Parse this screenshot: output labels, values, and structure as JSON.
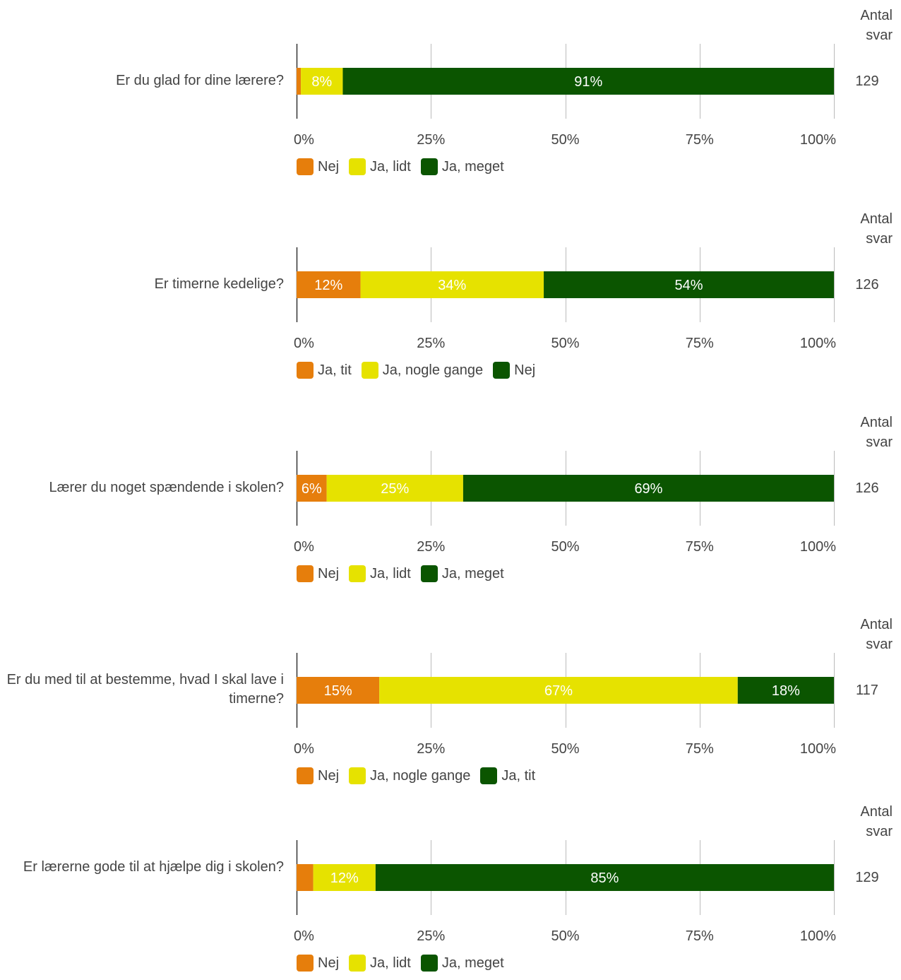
{
  "colors": {
    "orange": "#e67e0c",
    "yellow": "#e6e200",
    "green": "#0b5500",
    "grid": "#bbbbbb",
    "text": "#444444"
  },
  "chart_data": [
    {
      "type": "bar",
      "orientation": "horizontal-stacked-percent",
      "question": "Er du glad for dine lærere?",
      "count_label": "Antal\nsvar",
      "count": "129",
      "xlim": [
        0,
        100
      ],
      "xticks": [
        "0%",
        "25%",
        "50%",
        "75%",
        "100%"
      ],
      "grid": true,
      "legend_placement": "bottom-left",
      "series": [
        {
          "name": "Nej",
          "value": 0.8,
          "label": "",
          "color": "#e67e0c"
        },
        {
          "name": "Ja, lidt",
          "value": 7.8,
          "label": "8%",
          "color": "#e6e200"
        },
        {
          "name": "Ja, meget",
          "value": 91.4,
          "label": "91%",
          "color": "#0b5500"
        }
      ]
    },
    {
      "type": "bar",
      "orientation": "horizontal-stacked-percent",
      "question": "Er timerne kedelige?",
      "count_label": "Antal\nsvar",
      "count": "126",
      "xlim": [
        0,
        100
      ],
      "xticks": [
        "0%",
        "25%",
        "50%",
        "75%",
        "100%"
      ],
      "grid": true,
      "legend_placement": "bottom-left",
      "series": [
        {
          "name": "Ja, tit",
          "value": 11.9,
          "label": "12%",
          "color": "#e67e0c"
        },
        {
          "name": "Ja, nogle gange",
          "value": 34.1,
          "label": "34%",
          "color": "#e6e200"
        },
        {
          "name": "Nej",
          "value": 54.0,
          "label": "54%",
          "color": "#0b5500"
        }
      ]
    },
    {
      "type": "bar",
      "orientation": "horizontal-stacked-percent",
      "question": "Lærer du noget spændende i skolen?",
      "count_label": "Antal\nsvar",
      "count": "126",
      "xlim": [
        0,
        100
      ],
      "xticks": [
        "0%",
        "25%",
        "50%",
        "75%",
        "100%"
      ],
      "grid": true,
      "legend_placement": "bottom-left",
      "series": [
        {
          "name": "Nej",
          "value": 5.6,
          "label": "6%",
          "color": "#e67e0c"
        },
        {
          "name": "Ja, lidt",
          "value": 25.4,
          "label": "25%",
          "color": "#e6e200"
        },
        {
          "name": "Ja, meget",
          "value": 69.0,
          "label": "69%",
          "color": "#0b5500"
        }
      ]
    },
    {
      "type": "bar",
      "orientation": "horizontal-stacked-percent",
      "question": "Er du med til at bestemme, hvad I skal lave i timerne?",
      "count_label": "Antal\nsvar",
      "count": "117",
      "xlim": [
        0,
        100
      ],
      "xticks": [
        "0%",
        "25%",
        "50%",
        "75%",
        "100%"
      ],
      "grid": true,
      "legend_placement": "bottom-left",
      "series": [
        {
          "name": "Nej",
          "value": 15.4,
          "label": "15%",
          "color": "#e67e0c"
        },
        {
          "name": "Ja, nogle gange",
          "value": 66.7,
          "label": "67%",
          "color": "#e6e200"
        },
        {
          "name": "Ja, tit",
          "value": 17.9,
          "label": "18%",
          "color": "#0b5500"
        }
      ]
    },
    {
      "type": "bar",
      "orientation": "horizontal-stacked-percent",
      "question": "Er lærerne gode til at hjælpe dig i skolen?",
      "count_label": "Antal\nsvar",
      "count": "129",
      "xlim": [
        0,
        100
      ],
      "xticks": [
        "0%",
        "25%",
        "50%",
        "75%",
        "100%"
      ],
      "grid": true,
      "legend_placement": "bottom-left",
      "series": [
        {
          "name": "Nej",
          "value": 3.1,
          "label": "",
          "color": "#e67e0c"
        },
        {
          "name": "Ja, lidt",
          "value": 11.6,
          "label": "12%",
          "color": "#e6e200"
        },
        {
          "name": "Ja, meget",
          "value": 85.3,
          "label": "85%",
          "color": "#0b5500"
        }
      ]
    }
  ]
}
